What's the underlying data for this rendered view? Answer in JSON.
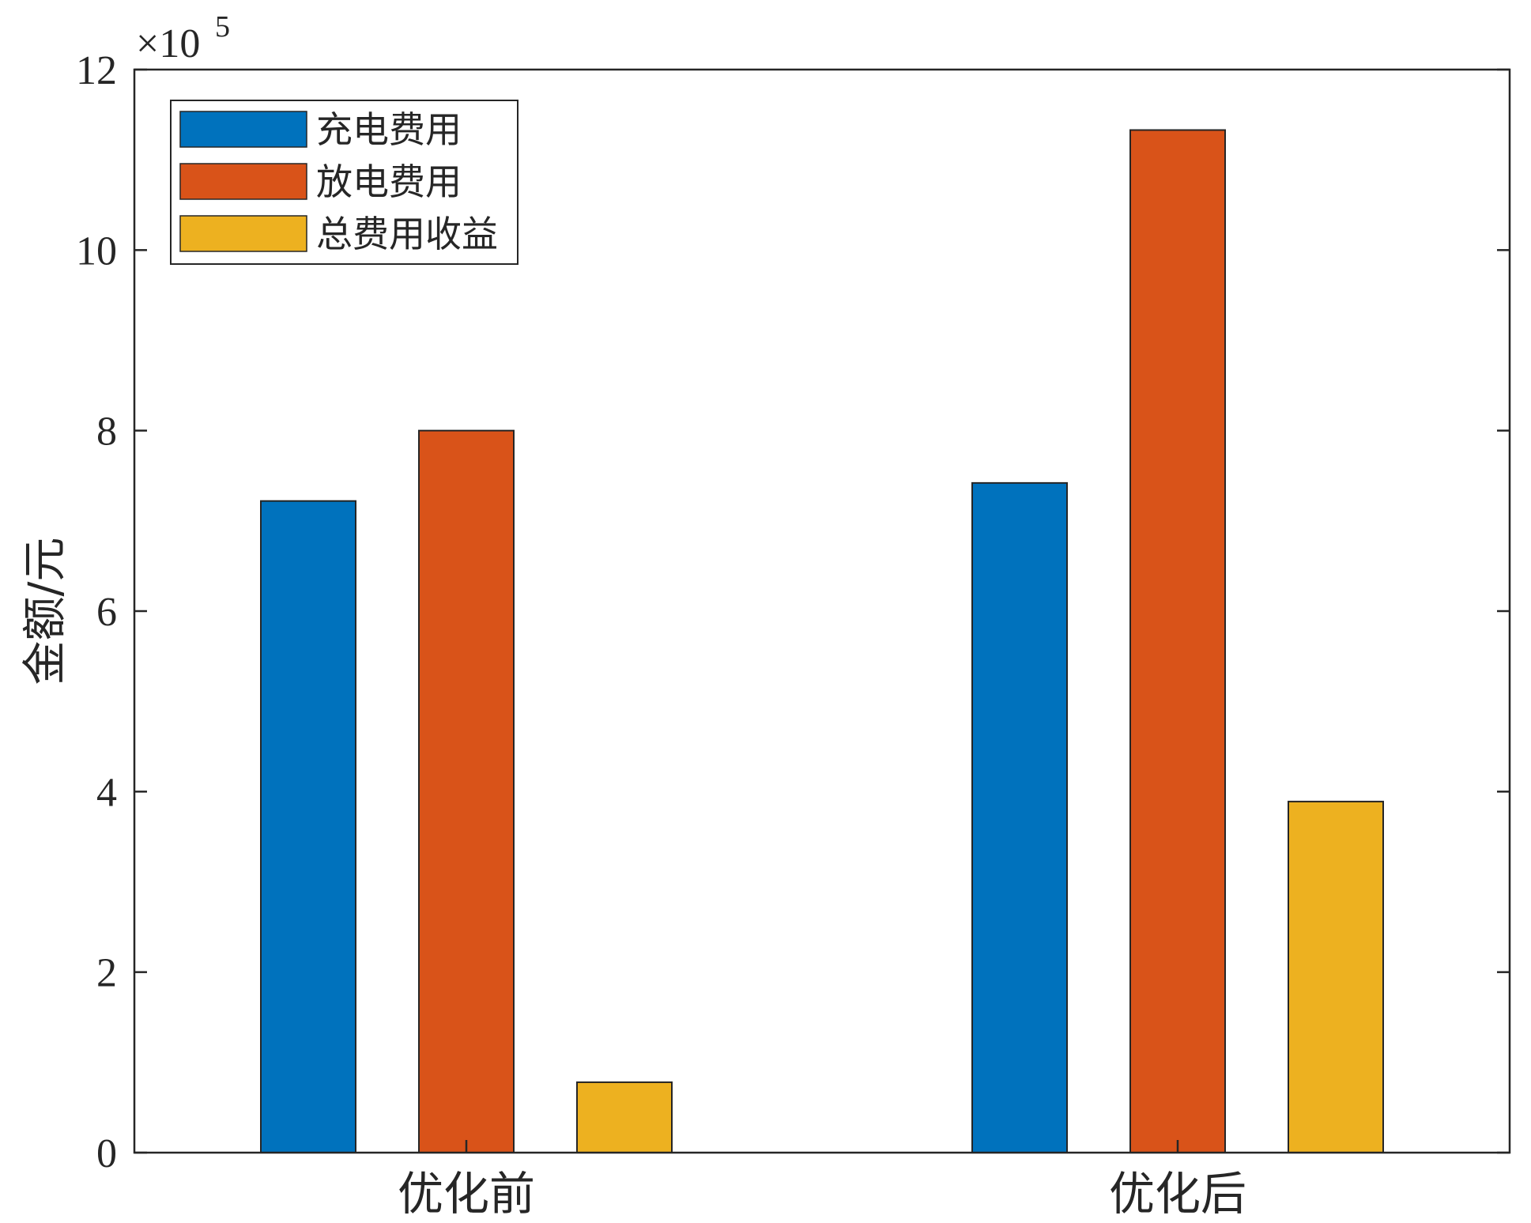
{
  "chart_data": {
    "type": "bar",
    "categories": [
      "优化前",
      "优化后"
    ],
    "series": [
      {
        "name": "充电费用",
        "color": "#0072BD",
        "values": [
          722000,
          742000
        ]
      },
      {
        "name": "放电费用",
        "color": "#D95319",
        "values": [
          800000,
          1133000
        ]
      },
      {
        "name": "总费用收益",
        "color": "#EDB120",
        "values": [
          78000,
          389000
        ]
      }
    ],
    "ylabel": "金额/元",
    "ylim": [
      0,
      1200000
    ],
    "yticks": [
      0,
      200000,
      400000,
      600000,
      800000,
      1000000,
      1200000
    ],
    "ytick_labels": [
      "0",
      "2",
      "4",
      "6",
      "8",
      "10",
      "12"
    ],
    "exponent_base": "×10",
    "exponent_power": "5",
    "legend_position": "top-left",
    "grid": false
  }
}
